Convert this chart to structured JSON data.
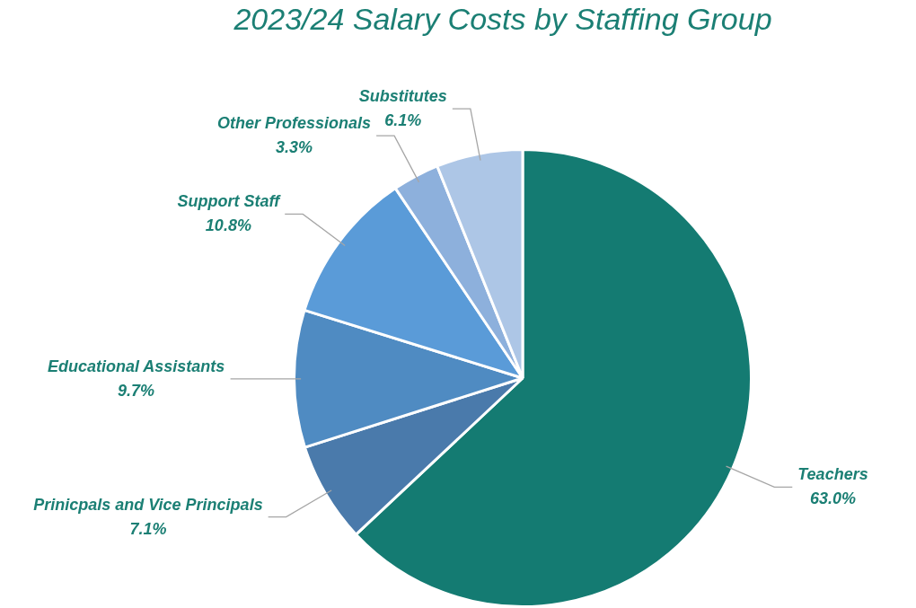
{
  "chart_data": {
    "type": "pie",
    "title": "2023/24 Salary Costs by Staffing Group",
    "categories": [
      "Teachers",
      "Prinicpals and Vice Principals",
      "Educational Assistants",
      "Support Staff",
      "Other Professionals",
      "Substitutes"
    ],
    "values": [
      63.0,
      7.1,
      9.7,
      10.8,
      3.3,
      6.1
    ],
    "value_labels": [
      "63.0%",
      "7.1%",
      "9.7%",
      "10.8%",
      "3.3%",
      "6.1%"
    ],
    "colors": [
      "#147b72",
      "#4a7aab",
      "#4f8bc2",
      "#5a9bd8",
      "#8db0dc",
      "#adc6e6"
    ],
    "legend": false
  }
}
